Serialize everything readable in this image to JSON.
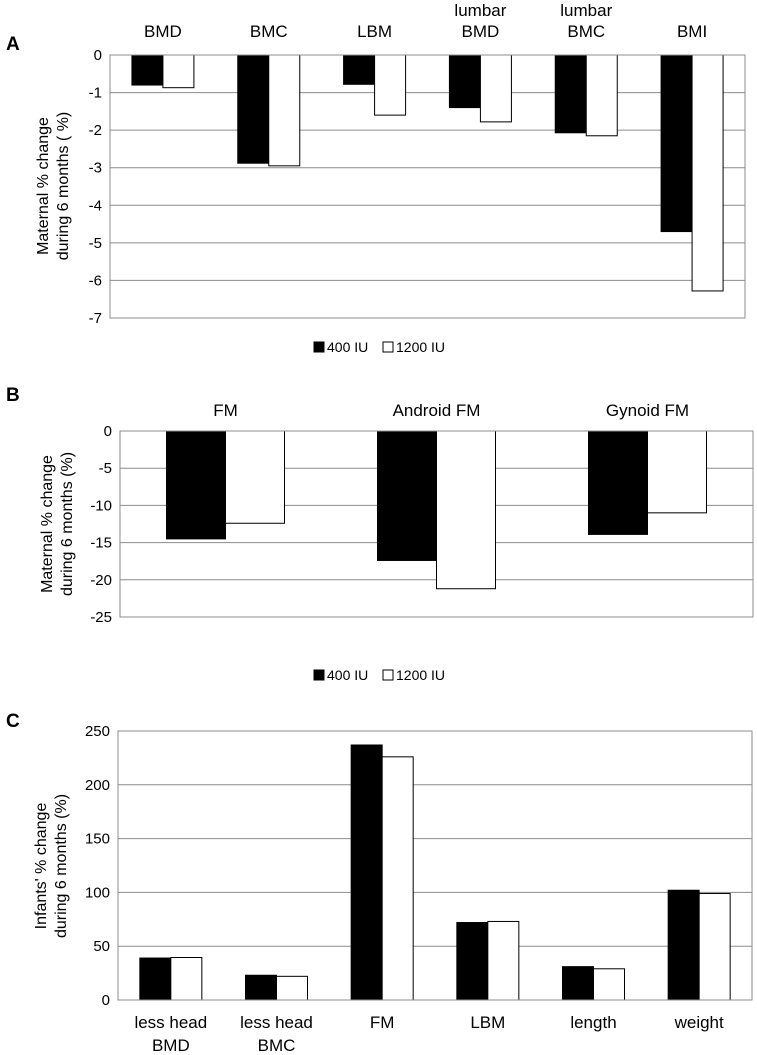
{
  "chart_data": [
    {
      "panel": "A",
      "type": "bar",
      "categories": [
        [
          "BMD"
        ],
        [
          "BMC"
        ],
        [
          "LBM"
        ],
        [
          "lumbar",
          "BMD"
        ],
        [
          "lumbar",
          "BMC"
        ],
        [
          "BMI"
        ]
      ],
      "series": [
        {
          "name": "400 IU",
          "color": "#000000",
          "values": [
            -0.8,
            -2.88,
            -0.78,
            -1.4,
            -2.07,
            -4.7
          ]
        },
        {
          "name": "1200 IU",
          "color": "#ffffff",
          "values": [
            -0.87,
            -2.95,
            -1.6,
            -1.78,
            -2.15,
            -6.28
          ]
        }
      ],
      "ylabel": [
        "Maternal  % change",
        "during 6 months ( %)"
      ],
      "ylim": [
        -7,
        0
      ],
      "yticks": [
        0,
        -1,
        -2,
        -3,
        -4,
        -5,
        -6,
        -7
      ],
      "category_labels_position": "top",
      "grid": true,
      "legend_position": "bottom-center"
    },
    {
      "panel": "B",
      "type": "bar",
      "categories": [
        [
          "FM"
        ],
        [
          "Android FM"
        ],
        [
          "Gynoid FM"
        ]
      ],
      "series": [
        {
          "name": "400 IU",
          "color": "#000000",
          "values": [
            -14.5,
            -17.4,
            -13.9
          ]
        },
        {
          "name": "1200 IU",
          "color": "#ffffff",
          "values": [
            -12.4,
            -21.2,
            -11.0
          ]
        }
      ],
      "ylabel": [
        "Maternal % change",
        "during 6 months  (%)"
      ],
      "ylim": [
        -25,
        0
      ],
      "yticks": [
        0,
        -5,
        -10,
        -15,
        -20,
        -25
      ],
      "category_labels_position": "top",
      "grid": true,
      "legend_position": "bottom-center"
    },
    {
      "panel": "C",
      "type": "bar",
      "categories": [
        [
          "less head",
          "BMD"
        ],
        [
          "less head",
          "BMC"
        ],
        [
          "FM"
        ],
        [
          "LBM"
        ],
        [
          "length"
        ],
        [
          "weight"
        ]
      ],
      "series": [
        {
          "name": "400 IU",
          "color": "#000000",
          "values": [
            39,
            23,
            237,
            72,
            31,
            102
          ]
        },
        {
          "name": "1200 IU",
          "color": "#ffffff",
          "values": [
            39.5,
            22,
            226,
            73,
            29,
            99
          ]
        }
      ],
      "ylabel": [
        "Infants' % change",
        "during 6 months (%)"
      ],
      "ylim": [
        0,
        250
      ],
      "yticks": [
        0,
        50,
        100,
        150,
        200,
        250
      ],
      "category_labels_position": "bottom",
      "grid": true
    }
  ]
}
